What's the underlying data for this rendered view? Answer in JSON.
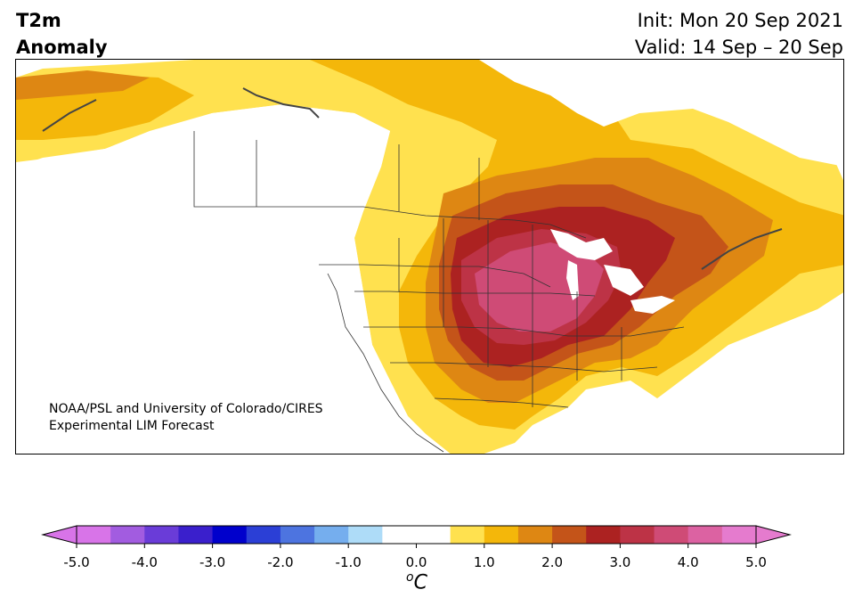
{
  "title": {
    "line1": "T2m",
    "line2": "Anomaly"
  },
  "init_text": "Init: Mon 20 Sep 2021",
  "valid_text": "Valid: 14 Sep – 20 Sep",
  "credit": {
    "line1": "NOAA/PSL and University of Colorado/CIRES",
    "line2": "Experimental LIM Forecast"
  },
  "colorbar": {
    "unit_sup": "o",
    "unit_main": "C",
    "tick_labels": [
      "-5.0",
      "-4.0",
      "-3.0",
      "-2.0",
      "-1.0",
      "0.0",
      "1.0",
      "2.0",
      "3.0",
      "4.0",
      "5.0"
    ],
    "levels_min": -5.0,
    "levels_max": 5.0,
    "level_step": 0.5,
    "colors": [
      "#d874e8",
      "#a25ce0",
      "#6a3cd8",
      "#3a1fcc",
      "#0000cc",
      "#2b3fd6",
      "#4d74e0",
      "#75aeee",
      "#aedcf8",
      "#ffffff",
      "#ffffff",
      "#ffe14f",
      "#f4b70a",
      "#de8713",
      "#c45419",
      "#ac2221",
      "#bd3346",
      "#cf4b76",
      "#dc62a2",
      "#e57bce"
    ],
    "under_color": "#d874e8",
    "over_color": "#e57bce"
  },
  "map_colors": {
    "lvl1": "#ffe14f",
    "lvl2": "#f4b70a",
    "lvl3": "#de8713",
    "lvl4": "#c45419",
    "lvl5": "#ac2221",
    "lvl6": "#bd3346",
    "lvl7": "#cf4b76",
    "cold": "#75aeee",
    "border": "#333333"
  }
}
